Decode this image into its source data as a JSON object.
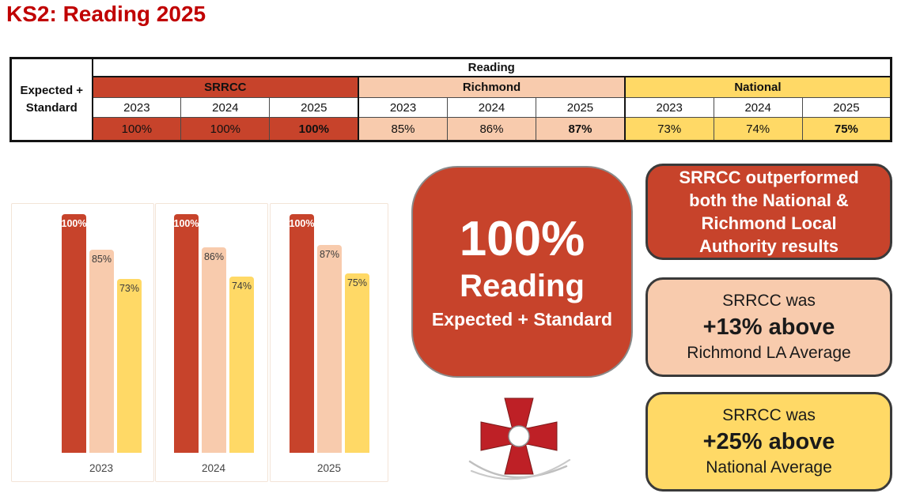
{
  "title": "KS2: Reading 2025",
  "colors": {
    "title": "#C00000",
    "srrcc_red": "#C7432B",
    "richmond_peach": "#F8CBAD",
    "national_yellow": "#FFD966",
    "crest_red": "#BE2026"
  },
  "table": {
    "row_label": "Expected + Standard",
    "subject_header": "Reading",
    "groups": [
      {
        "name": "SRRCC",
        "color": "#C7432B",
        "years": [
          "2023",
          "2024",
          "2025"
        ],
        "values": [
          "100%",
          "100%",
          "100%"
        ]
      },
      {
        "name": "Richmond",
        "color": "#F8CBAD",
        "years": [
          "2023",
          "2024",
          "2025"
        ],
        "values": [
          "85%",
          "86%",
          "87%"
        ]
      },
      {
        "name": "National",
        "color": "#FFD966",
        "years": [
          "2023",
          "2024",
          "2025"
        ],
        "values": [
          "73%",
          "74%",
          "75%"
        ]
      }
    ]
  },
  "chart_data": {
    "type": "bar",
    "categories": [
      "2023",
      "2024",
      "2025"
    ],
    "series": [
      {
        "name": "SRRCC",
        "color": "#C7432B",
        "label_style": "on-dark",
        "values": [
          100,
          100,
          100
        ]
      },
      {
        "name": "Richmond",
        "color": "#F8CBAD",
        "label_style": "on-light",
        "values": [
          85,
          86,
          87
        ]
      },
      {
        "name": "National",
        "color": "#FFD966",
        "label_style": "on-light",
        "values": [
          73,
          74,
          75
        ]
      }
    ],
    "value_suffix": "%",
    "title": "",
    "xlabel": "",
    "ylabel": "",
    "ylim": [
      0,
      100
    ],
    "grid": false,
    "legend": "none",
    "data_labels": true
  },
  "summary_card": {
    "value": "100%",
    "subject": "Reading",
    "caption": "Expected + Standard",
    "bg": "#C7432B"
  },
  "callouts": [
    {
      "text": "SRRCC outperformed both the National & Richmond Local Authority results",
      "bg": "#C7432B",
      "text_color": "#ffffff"
    },
    {
      "line1": "SRRCC was",
      "highlight": "+13% above",
      "line3": "Richmond LA Average",
      "bg": "#F8CBAD",
      "text_color": "#1a1a1a"
    },
    {
      "line1": "SRRCC was",
      "highlight": "+25% above",
      "line3": "National Average",
      "bg": "#FFD966",
      "text_color": "#1a1a1a"
    }
  ],
  "logo": {
    "name": "red-cross-crest"
  }
}
